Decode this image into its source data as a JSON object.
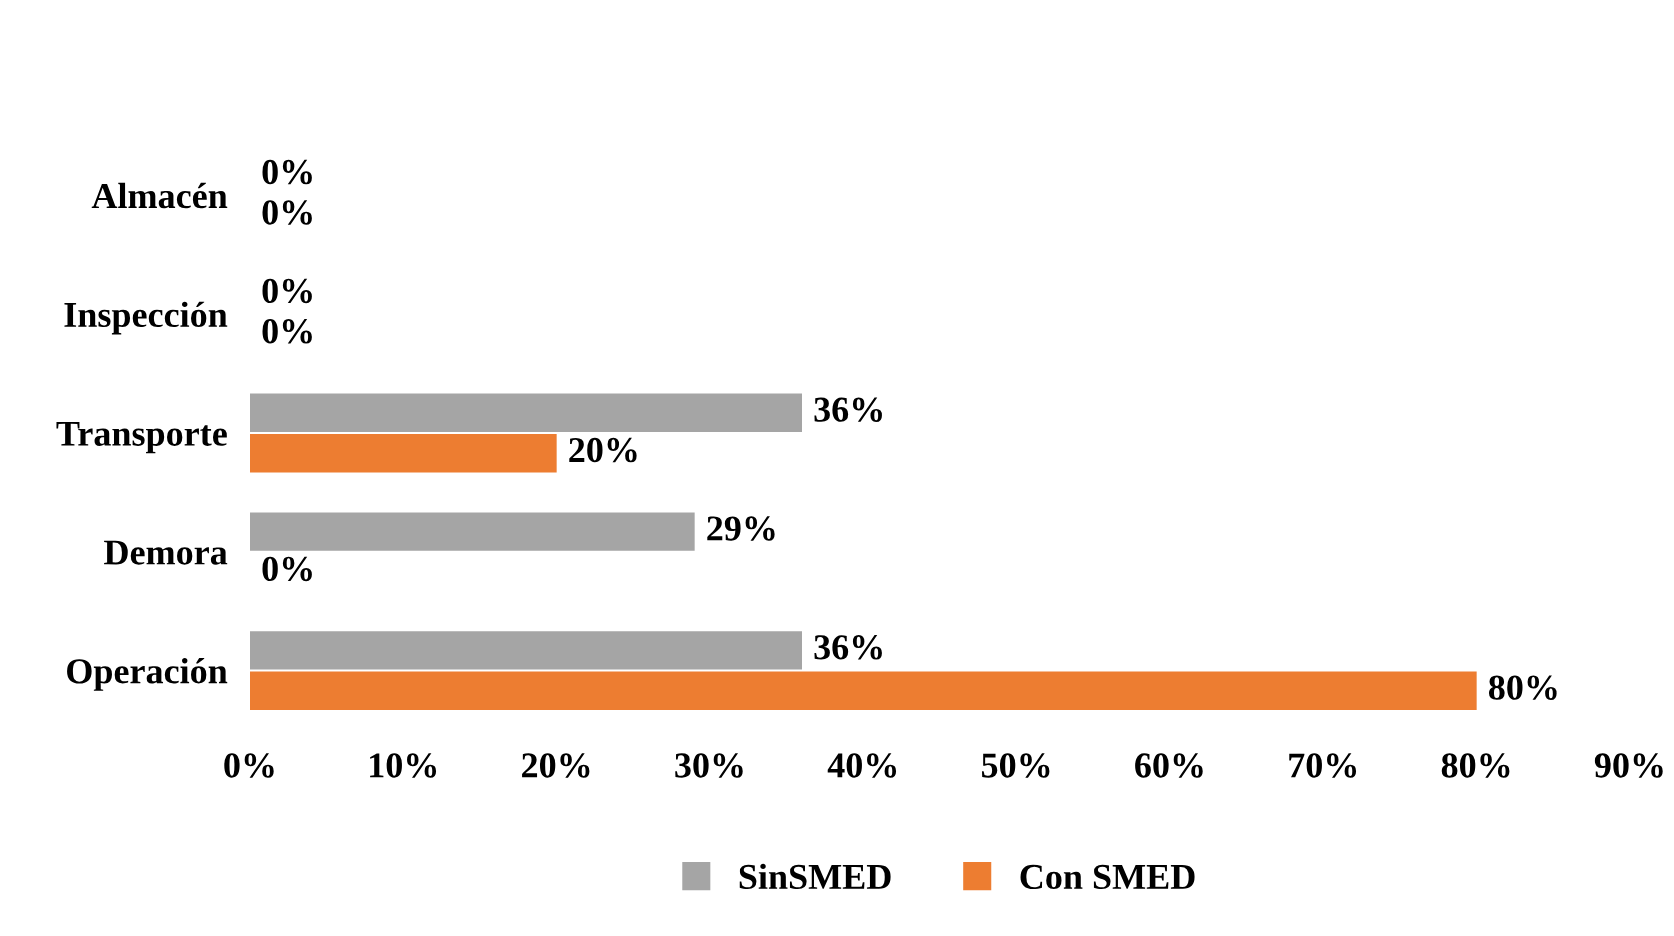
{
  "chart_data": {
    "type": "bar",
    "orientation": "horizontal",
    "categories": [
      "Almacén",
      "Inspección",
      "Transporte",
      "Demora",
      "Operación"
    ],
    "series": [
      {
        "name": "SinSMED",
        "color": "#a5a5a5",
        "values": [
          0,
          0,
          36,
          29,
          36
        ],
        "value_labels": [
          "0%",
          "0%",
          "36%",
          "29%",
          "36%"
        ]
      },
      {
        "name": "Con SMED",
        "color": "#ed7d31",
        "values": [
          0,
          0,
          20,
          0,
          80
        ],
        "value_labels": [
          "0%",
          "0%",
          "20%",
          "0%",
          "80%"
        ]
      }
    ],
    "xlim": [
      0,
      90
    ],
    "xticks": [
      {
        "value": 0,
        "label": "0%"
      },
      {
        "value": 10,
        "label": "10%"
      },
      {
        "value": 20,
        "label": "20%"
      },
      {
        "value": 30,
        "label": "30%"
      },
      {
        "value": 40,
        "label": "40%"
      },
      {
        "value": 50,
        "label": "50%"
      },
      {
        "value": 60,
        "label": "60%"
      },
      {
        "value": 70,
        "label": "70%"
      },
      {
        "value": 80,
        "label": "80%"
      },
      {
        "value": 90,
        "label": "90%"
      }
    ],
    "grid": false,
    "legend": "bottom"
  }
}
